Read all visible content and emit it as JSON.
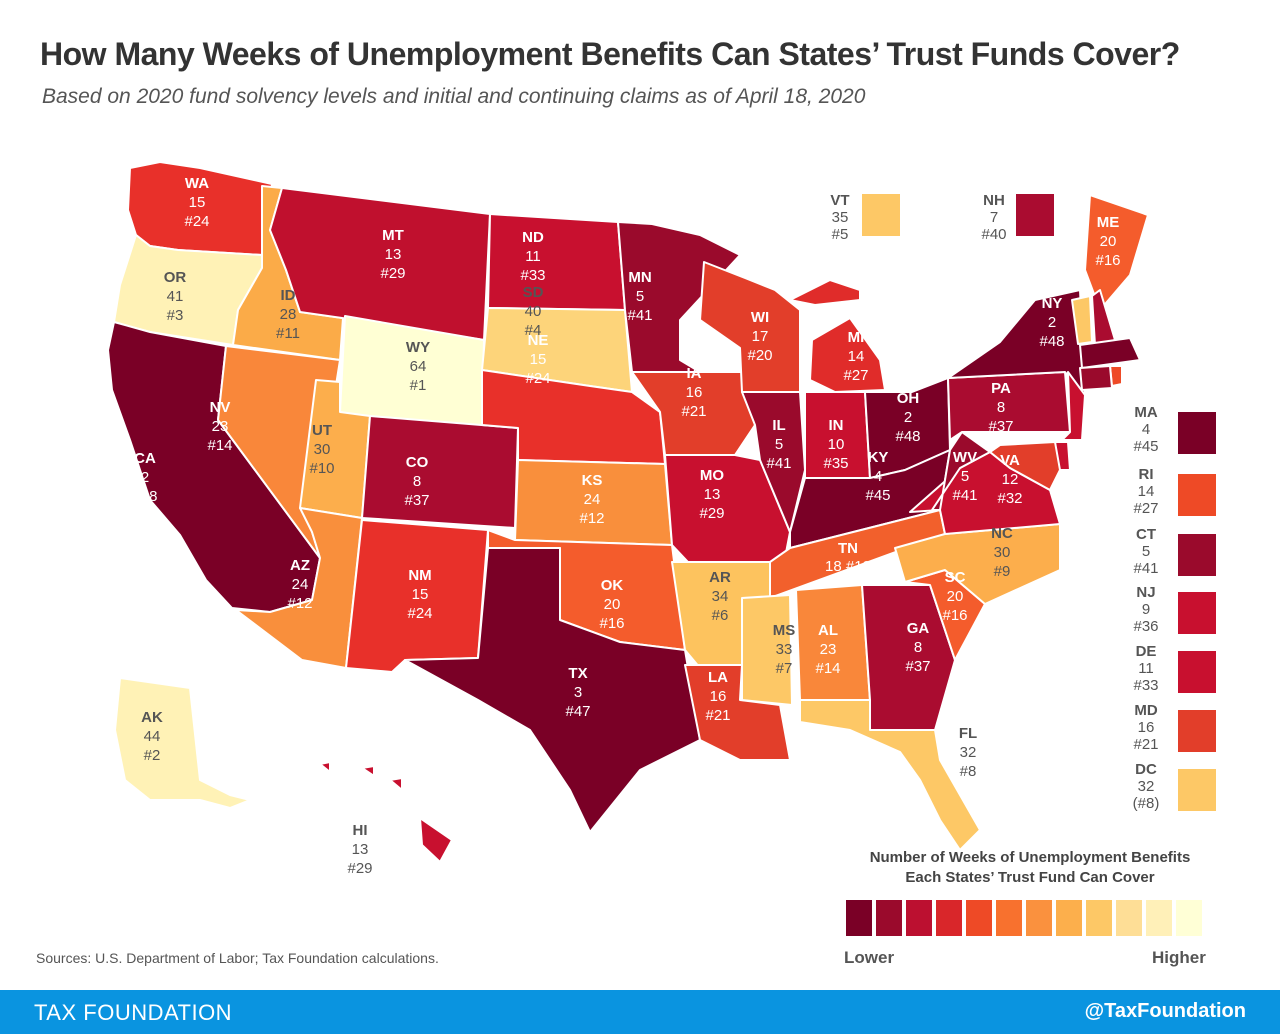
{
  "title": "How Many Weeks of Unemployment Benefits Can States’ Trust Funds Cover?",
  "subtitle": "Based on 2020 fund solvency levels and initial and continuing claims as of April 18, 2020",
  "legend": {
    "title_line1": "Number of Weeks of Unemployment Benefits",
    "title_line2": "Each States’ Trust Fund Can Cover",
    "lower": "Lower",
    "higher": "Higher",
    "colors": [
      "#7a0026",
      "#9a0a2c",
      "#bc1030",
      "#d9262a",
      "#ee4a26",
      "#f8712e",
      "#fa913e",
      "#fcaf4c",
      "#fdc866",
      "#fede96",
      "#fff0b8",
      "#ffffd6"
    ]
  },
  "sources": "Sources: U.S. Department of Labor; Tax Foundation calculations.",
  "footer": {
    "brand": "TAX FOUNDATION",
    "handle": "@TaxFoundation"
  },
  "states": {
    "WA": {
      "abbr": "WA",
      "weeks": "15",
      "rank": "#24",
      "color": "#e8302a"
    },
    "OR": {
      "abbr": "OR",
      "weeks": "41",
      "rank": "#3",
      "color": "#fff2b6"
    },
    "CA": {
      "abbr": "CA",
      "weeks": "2",
      "rank": "#48",
      "color": "#7a0026"
    },
    "ID": {
      "abbr": "ID",
      "weeks": "28",
      "rank": "#11",
      "color": "#fbab48"
    },
    "NV": {
      "abbr": "NV",
      "weeks": "23",
      "rank": "#14",
      "color": "#f9873a"
    },
    "MT": {
      "abbr": "MT",
      "weeks": "13",
      "rank": "#29",
      "color": "#c0102e"
    },
    "WY": {
      "abbr": "WY",
      "weeks": "64",
      "rank": "#1",
      "color": "#ffffd4"
    },
    "UT": {
      "abbr": "UT",
      "weeks": "30",
      "rank": "#10",
      "color": "#fcae4c"
    },
    "AZ": {
      "abbr": "AZ",
      "weeks": "24",
      "rank": "#12",
      "color": "#f98f3c"
    },
    "CO": {
      "abbr": "CO",
      "weeks": "8",
      "rank": "#37",
      "color": "#aa0c30"
    },
    "NM": {
      "abbr": "NM",
      "weeks": "15",
      "rank": "#24",
      "color": "#e8302a"
    },
    "ND": {
      "abbr": "ND",
      "weeks": "11",
      "rank": "#33",
      "color": "#c8102f"
    },
    "SD": {
      "abbr": "SD",
      "weeks": "40",
      "rank": "#4",
      "color": "#fdd47a"
    },
    "NE": {
      "abbr": "NE",
      "weeks": "15",
      "rank": "#24",
      "color": "#e8302a"
    },
    "KS": {
      "abbr": "KS",
      "weeks": "24",
      "rank": "#12",
      "color": "#f98f3c"
    },
    "OK": {
      "abbr": "OK",
      "weeks": "20",
      "rank": "#16",
      "color": "#f45c2c"
    },
    "TX": {
      "abbr": "TX",
      "weeks": "3",
      "rank": "#47",
      "color": "#7a0026"
    },
    "MN": {
      "abbr": "MN",
      "weeks": "5",
      "rank": "#41",
      "color": "#9a0a2c"
    },
    "IA": {
      "abbr": "IA",
      "weeks": "16",
      "rank": "#21",
      "color": "#e23e2a"
    },
    "MO": {
      "abbr": "MO",
      "weeks": "13",
      "rank": "#29",
      "color": "#c8102f"
    },
    "AR": {
      "abbr": "AR",
      "weeks": "34",
      "rank": "#6",
      "color": "#fdc35e"
    },
    "LA": {
      "abbr": "LA",
      "weeks": "16",
      "rank": "#21",
      "color": "#e23e2a"
    },
    "WI": {
      "abbr": "WI",
      "weeks": "17",
      "rank": "#20",
      "color": "#e23e2a"
    },
    "IL": {
      "abbr": "IL",
      "weeks": "5",
      "rank": "#41",
      "color": "#9a0a2c"
    },
    "MI": {
      "abbr": "MI",
      "weeks": "14",
      "rank": "#27",
      "color": "#e02c2a"
    },
    "IN": {
      "abbr": "IN",
      "weeks": "10",
      "rank": "#35",
      "color": "#c8102f"
    },
    "OH": {
      "abbr": "OH",
      "weeks": "2",
      "rank": "#48",
      "color": "#7a0026"
    },
    "KY": {
      "abbr": "KY",
      "weeks": "4",
      "rank": "#45",
      "color": "#7a0026"
    },
    "TN": {
      "abbr": "TN",
      "weeks": "18",
      "rank": "#19",
      "color": "#f2602c"
    },
    "MS": {
      "abbr": "MS",
      "weeks": "33",
      "rank": "#7",
      "color": "#fdc866"
    },
    "AL": {
      "abbr": "AL",
      "weeks": "23",
      "rank": "#14",
      "color": "#f9873a"
    },
    "GA": {
      "abbr": "GA",
      "weeks": "8",
      "rank": "#37",
      "color": "#aa0c30"
    },
    "FL": {
      "abbr": "FL",
      "weeks": "32",
      "rank": "#8",
      "color": "#fdc866"
    },
    "SC": {
      "abbr": "SC",
      "weeks": "20",
      "rank": "#16",
      "color": "#f45c2c"
    },
    "NC": {
      "abbr": "NC",
      "weeks": "30",
      "rank": "#9",
      "color": "#fcae4c"
    },
    "VA": {
      "abbr": "VA",
      "weeks": "12",
      "rank": "#32",
      "color": "#c8102f"
    },
    "WV": {
      "abbr": "WV",
      "weeks": "5",
      "rank": "#41",
      "color": "#9a0a2c"
    },
    "PA": {
      "abbr": "PA",
      "weeks": "8",
      "rank": "#37",
      "color": "#aa0c30"
    },
    "NY": {
      "abbr": "NY",
      "weeks": "2",
      "rank": "#48",
      "color": "#7a0026"
    },
    "ME": {
      "abbr": "ME",
      "weeks": "20",
      "rank": "#16",
      "color": "#f45c2c"
    },
    "AK": {
      "abbr": "AK",
      "weeks": "44",
      "rank": "#2",
      "color": "#fff2b6"
    },
    "HI": {
      "abbr": "HI",
      "weeks": "13",
      "rank": "#29",
      "color": "#c8102f"
    }
  },
  "boxes": {
    "VT": {
      "abbr": "VT",
      "weeks": "35",
      "rank": "#5",
      "color": "#fdc866"
    },
    "NH": {
      "abbr": "NH",
      "weeks": "7",
      "rank": "#40",
      "color": "#aa0c30"
    },
    "MA": {
      "abbr": "MA",
      "weeks": "4",
      "rank": "#45",
      "color": "#7a0026"
    },
    "RI": {
      "abbr": "RI",
      "weeks": "14",
      "rank": "#27",
      "color": "#ee4a26"
    },
    "CT": {
      "abbr": "CT",
      "weeks": "5",
      "rank": "#41",
      "color": "#9a0a2c"
    },
    "NJ": {
      "abbr": "NJ",
      "weeks": "9",
      "rank": "#36",
      "color": "#c8102f"
    },
    "DE": {
      "abbr": "DE",
      "weeks": "11",
      "rank": "#33",
      "color": "#c8102f"
    },
    "MD": {
      "abbr": "MD",
      "weeks": "16",
      "rank": "#21",
      "color": "#e23e2a"
    },
    "DC": {
      "abbr": "DC",
      "weeks": "32",
      "rank": "(#8)",
      "color": "#fdc866"
    }
  }
}
